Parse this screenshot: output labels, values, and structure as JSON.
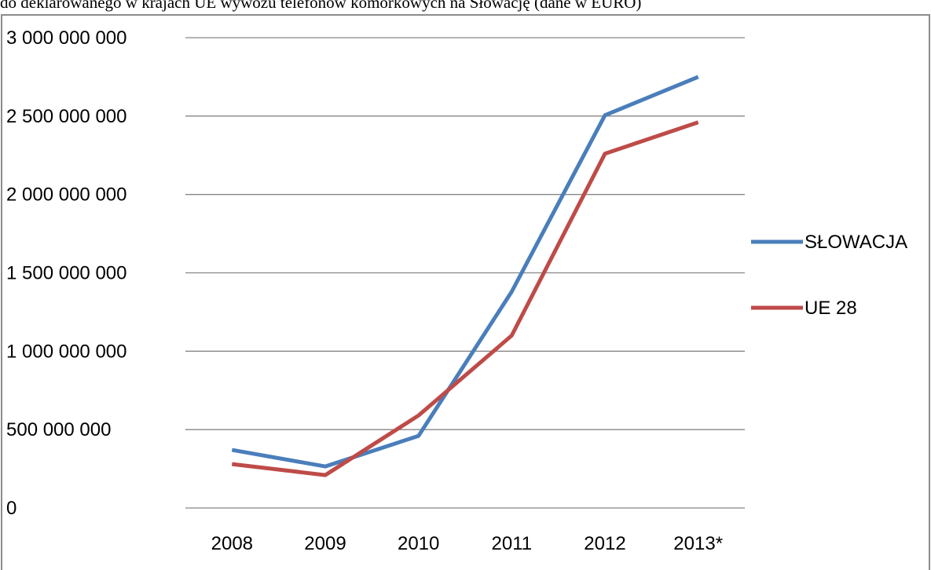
{
  "caption": "do deklarowanego w krajach UE wywozu telefonów komórkowych na Słowację (dane w EURO)",
  "chart_data": {
    "type": "line",
    "title": "",
    "xlabel": "",
    "ylabel": "",
    "categories": [
      "2008",
      "2009",
      "2010",
      "2011",
      "2012",
      "2013*"
    ],
    "ylim": [
      0,
      3000000000
    ],
    "yticks": [
      0,
      500000000,
      1000000000,
      1500000000,
      2000000000,
      2500000000,
      3000000000
    ],
    "ytick_labels": [
      "0",
      "500 000 000",
      "1 000 000 000",
      "1 500 000 000",
      "2 000 000 000",
      "2 500 000 000",
      "3 000 000 000"
    ],
    "grid": true,
    "legend_position": "right",
    "series": [
      {
        "name": "SŁOWACJA",
        "color": "#4a7ebb",
        "values": [
          370000000,
          265000000,
          460000000,
          1380000000,
          2505000000,
          2750000000
        ]
      },
      {
        "name": "UE 28",
        "color": "#be4b48",
        "values": [
          280000000,
          210000000,
          590000000,
          1100000000,
          2260000000,
          2460000000
        ]
      }
    ]
  }
}
